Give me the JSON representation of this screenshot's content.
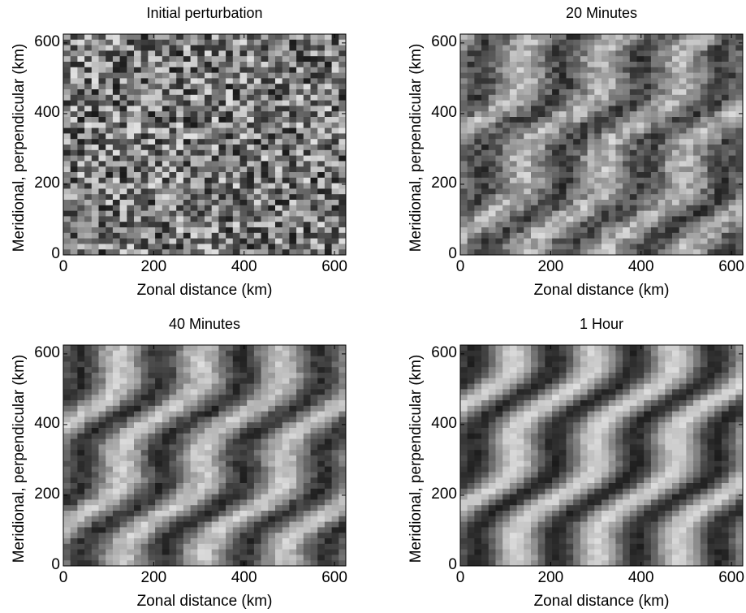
{
  "chart_data": [
    {
      "type": "heatmap",
      "title": "Initial perturbation",
      "xlabel": "Zonal distance (km)",
      "ylabel": "Meridional, perpendicular (km)",
      "xlim": [
        0,
        625
      ],
      "ylim": [
        0,
        625
      ],
      "xticks": [
        0,
        200,
        400,
        600
      ],
      "yticks": [
        0,
        200,
        400,
        600
      ],
      "colormap": "grayscale",
      "pattern": "random"
    },
    {
      "type": "heatmap",
      "title": "20 Minutes",
      "xlabel": "Zonal distance (km)",
      "ylabel": "Meridional, perpendicular (km)",
      "xlim": [
        0,
        625
      ],
      "ylim": [
        0,
        625
      ],
      "xticks": [
        0,
        200,
        400,
        600
      ],
      "yticks": [
        0,
        200,
        400,
        600
      ],
      "colormap": "grayscale",
      "pattern": "diagonal bands"
    },
    {
      "type": "heatmap",
      "title": "40 Minutes",
      "xlabel": "Zonal distance (km)",
      "ylabel": "Meridional, perpendicular (km)",
      "xlim": [
        0,
        625
      ],
      "ylim": [
        0,
        625
      ],
      "xticks": [
        0,
        200,
        400,
        600
      ],
      "yticks": [
        0,
        200,
        400,
        600
      ],
      "colormap": "grayscale",
      "pattern": "diagonal bands"
    },
    {
      "type": "heatmap",
      "title": "1 Hour",
      "xlabel": "Zonal distance (km)",
      "ylabel": "Meridional, perpendicular (km)",
      "xlim": [
        0,
        625
      ],
      "ylim": [
        0,
        625
      ],
      "xticks": [
        0,
        200,
        400,
        600
      ],
      "yticks": [
        0,
        200,
        400,
        600
      ],
      "colormap": "grayscale",
      "pattern": "diagonal bands"
    }
  ]
}
